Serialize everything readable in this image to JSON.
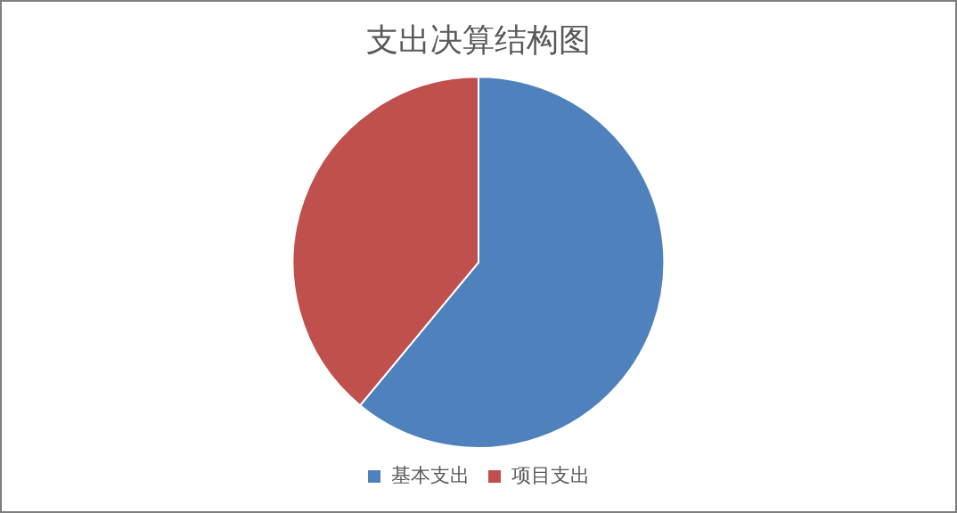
{
  "chart_data": {
    "type": "pie",
    "title": "支出决算结构图",
    "categories": [
      "基本支出",
      "项目支出"
    ],
    "values": [
      61,
      39
    ],
    "colors": [
      "#4f81bd",
      "#c0504d"
    ],
    "legend": "bottom"
  }
}
